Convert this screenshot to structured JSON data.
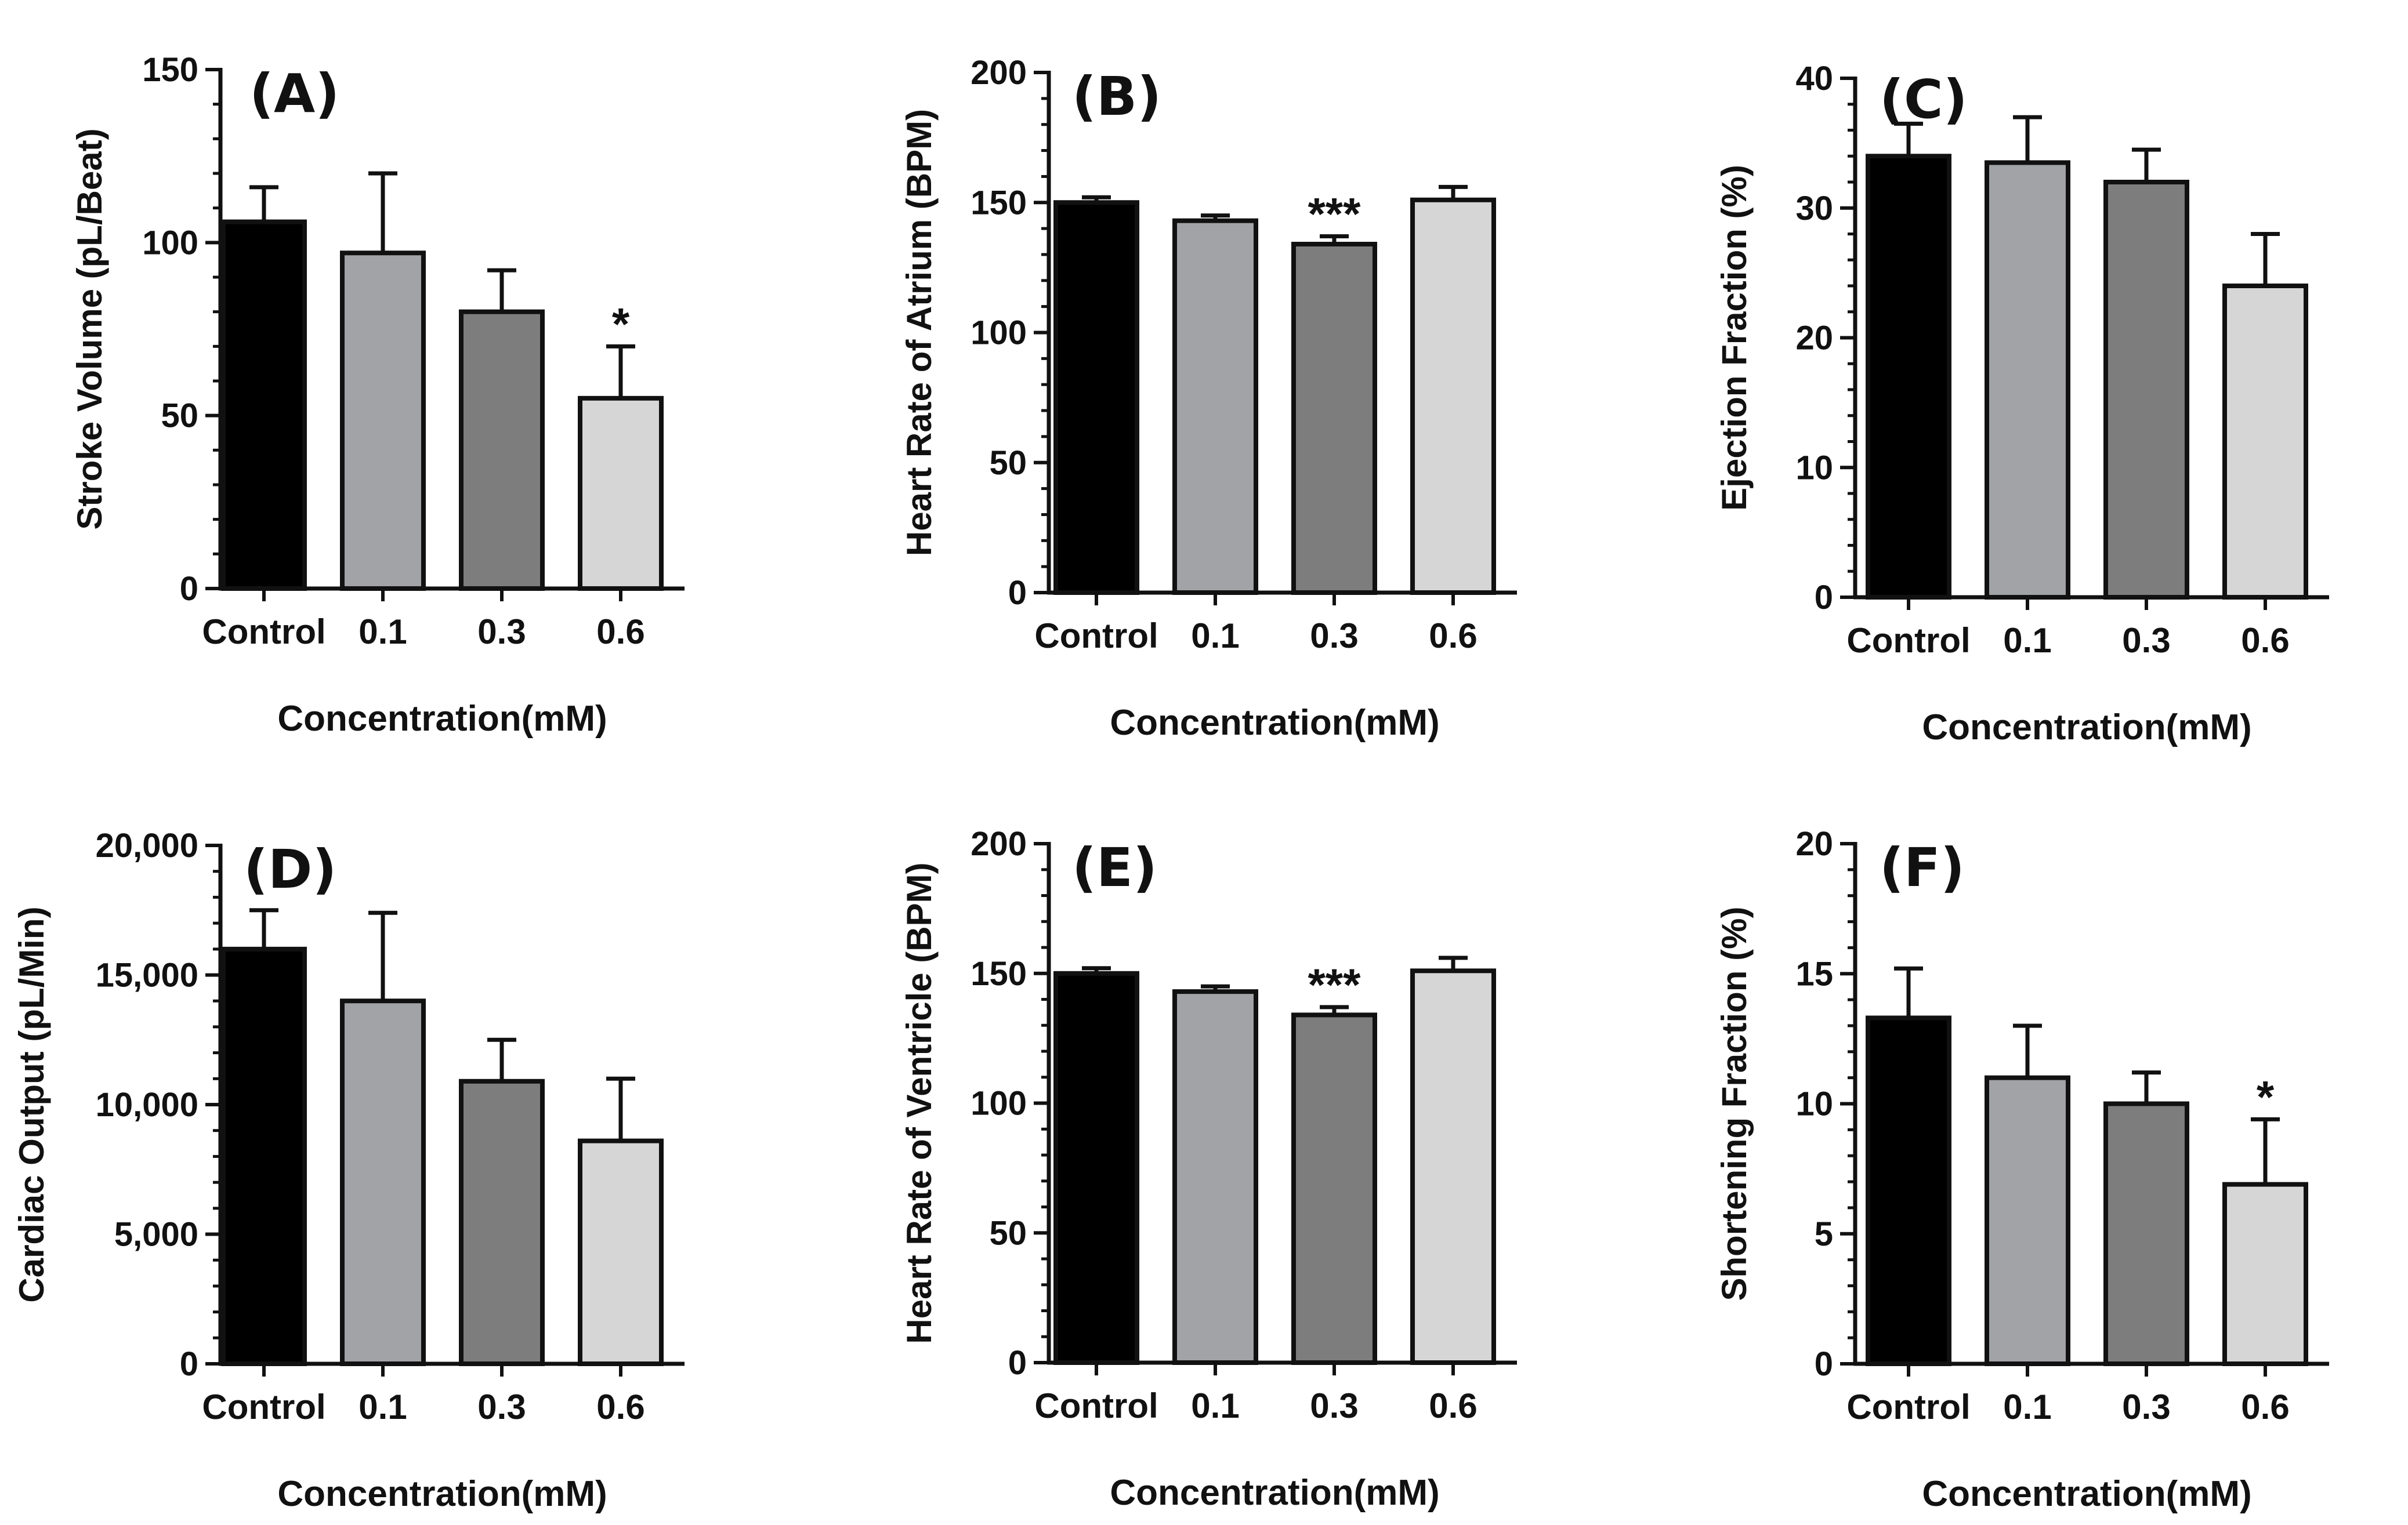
{
  "colors": {
    "control": "#000000",
    "c01": "#a2a3a7",
    "c03": "#7d7d7d",
    "c06": "#d6d6d6",
    "axis": "#111111"
  },
  "chart_data": [
    {
      "type": "bar",
      "panel_label": "(A)",
      "title": "",
      "xlabel": "Concentration(mM)",
      "ylabel": "Stroke Volume (pL/Beat)",
      "categories": [
        "Control",
        "0.1",
        "0.3",
        "0.6"
      ],
      "values": [
        106,
        97,
        80,
        55
      ],
      "error": [
        10,
        23,
        12,
        15
      ],
      "significance": [
        "",
        "",
        "",
        "*"
      ],
      "ylim": [
        0,
        150
      ],
      "yticks": [
        0,
        50,
        100,
        150
      ],
      "ytick_labels": [
        "0",
        "50",
        "100",
        "150"
      ],
      "grid": false
    },
    {
      "type": "bar",
      "panel_label": "(B)",
      "title": "",
      "xlabel": "Concentration(mM)",
      "ylabel": "Heart Rate of Atrium (BPM)",
      "categories": [
        "Control",
        "0.1",
        "0.3",
        "0.6"
      ],
      "values": [
        150,
        143,
        134,
        151
      ],
      "error": [
        2,
        2,
        3,
        5
      ],
      "significance": [
        "",
        "",
        "***",
        ""
      ],
      "ylim": [
        0,
        200
      ],
      "yticks": [
        0,
        50,
        100,
        150,
        200
      ],
      "ytick_labels": [
        "0",
        "50",
        "100",
        "150",
        "200"
      ],
      "grid": false
    },
    {
      "type": "bar",
      "panel_label": "(C)",
      "title": "",
      "xlabel": "Concentration(mM)",
      "ylabel": "Ejection Fraction (%)",
      "categories": [
        "Control",
        "0.1",
        "0.3",
        "0.6"
      ],
      "values": [
        34,
        33.5,
        32,
        24
      ],
      "error": [
        2.5,
        3.5,
        2.5,
        4
      ],
      "significance": [
        "",
        "",
        "",
        ""
      ],
      "ylim": [
        0,
        40
      ],
      "yticks": [
        0,
        10,
        20,
        30,
        40
      ],
      "ytick_labels": [
        "0",
        "10",
        "20",
        "30",
        "40"
      ],
      "grid": false
    },
    {
      "type": "bar",
      "panel_label": "(D)",
      "title": "",
      "xlabel": "Concentration(mM)",
      "ylabel": "Cardiac Output (pL/Min)",
      "categories": [
        "Control",
        "0.1",
        "0.3",
        "0.6"
      ],
      "values": [
        16000,
        14000,
        10900,
        8600
      ],
      "error": [
        1500,
        3400,
        1600,
        2400
      ],
      "significance": [
        "",
        "",
        "",
        ""
      ],
      "ylim": [
        0,
        20000
      ],
      "yticks": [
        0,
        5000,
        10000,
        15000,
        20000
      ],
      "ytick_labels": [
        "0",
        "5,000",
        "10,000",
        "15,000",
        "20,000"
      ],
      "grid": false
    },
    {
      "type": "bar",
      "panel_label": "(E)",
      "title": "",
      "xlabel": "Concentration(mM)",
      "ylabel": "Heart Rate of Ventricle (BPM)",
      "categories": [
        "Control",
        "0.1",
        "0.3",
        "0.6"
      ],
      "values": [
        150,
        143,
        134,
        151
      ],
      "error": [
        2,
        2,
        3,
        5
      ],
      "significance": [
        "",
        "",
        "***",
        ""
      ],
      "ylim": [
        0,
        200
      ],
      "yticks": [
        0,
        50,
        100,
        150,
        200
      ],
      "ytick_labels": [
        "0",
        "50",
        "100",
        "150",
        "200"
      ],
      "grid": false
    },
    {
      "type": "bar",
      "panel_label": "(F)",
      "title": "",
      "xlabel": "Concentration(mM)",
      "ylabel": "Shortening Fraction (%)",
      "categories": [
        "Control",
        "0.1",
        "0.3",
        "0.6"
      ],
      "values": [
        13.3,
        11,
        10,
        6.9
      ],
      "error": [
        1.9,
        2,
        1.2,
        2.5
      ],
      "significance": [
        "",
        "",
        "",
        "*"
      ],
      "ylim": [
        0,
        20
      ],
      "yticks": [
        0,
        5,
        10,
        15,
        20
      ],
      "ytick_labels": [
        "0",
        "5",
        "10",
        "15",
        "20"
      ],
      "grid": false
    }
  ]
}
